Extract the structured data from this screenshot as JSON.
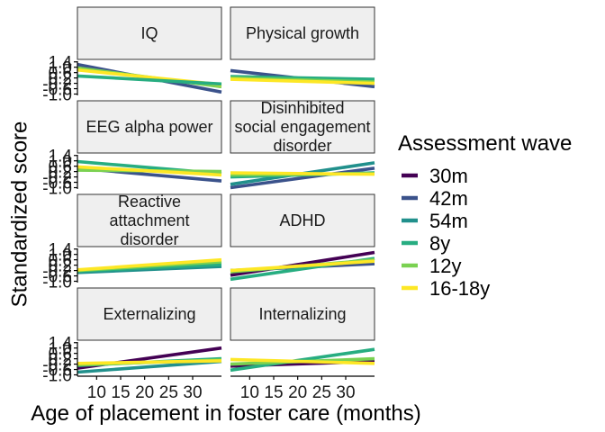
{
  "chart_data": {
    "type": "line",
    "xlabel": "Age of placement in foster care (months)",
    "ylabel": "Standardized score",
    "xlim": [
      6,
      36
    ],
    "ylim": [
      -1.1,
      1.45
    ],
    "x_ticks": [
      10,
      15,
      20,
      25,
      30
    ],
    "y_ticks": [
      -1.0,
      -0.6,
      -0.2,
      0.2,
      0.6,
      1.0,
      1.4
    ],
    "y_tick_labels": [
      "-1.0",
      "-0.6",
      "-0.2",
      "0.2",
      "0.6",
      "1.0",
      "1.4"
    ],
    "legend_title": "Assessment wave",
    "legend_position": "right",
    "series": [
      {
        "name": "30m",
        "color": "#440154"
      },
      {
        "name": "42m",
        "color": "#3b528b"
      },
      {
        "name": "54m",
        "color": "#21908c"
      },
      {
        "name": "8y",
        "color": "#27ad81"
      },
      {
        "name": "12y",
        "color": "#7ad151"
      },
      {
        "name": "16-18y",
        "color": "#fde725"
      }
    ],
    "panels": [
      {
        "title": "IQ",
        "lines": [
          {
            "series": "42m",
            "x": [
              6,
              36
            ],
            "y": [
              1.2,
              -0.85
            ]
          },
          {
            "series": "12y",
            "x": [
              6,
              36
            ],
            "y": [
              0.95,
              -0.45
            ]
          },
          {
            "series": "16-18y",
            "x": [
              6,
              36
            ],
            "y": [
              0.8,
              -0.3
            ]
          },
          {
            "series": "8y",
            "x": [
              6,
              36
            ],
            "y": [
              0.35,
              -0.25
            ]
          }
        ]
      },
      {
        "title": "Physical growth",
        "lines": [
          {
            "series": "42m",
            "x": [
              6,
              36
            ],
            "y": [
              0.75,
              -0.45
            ]
          },
          {
            "series": "8y",
            "x": [
              6,
              36
            ],
            "y": [
              0.3,
              0.1
            ]
          },
          {
            "series": "12y",
            "x": [
              6,
              36
            ],
            "y": [
              0.2,
              -0.1
            ]
          },
          {
            "series": "16-18y",
            "x": [
              6,
              36
            ],
            "y": [
              0.1,
              -0.2
            ]
          }
        ]
      },
      {
        "title": "EEG alpha power",
        "lines": [
          {
            "series": "42m",
            "x": [
              6,
              36
            ],
            "y": [
              0.45,
              -0.5
            ]
          },
          {
            "series": "8y",
            "x": [
              6,
              36
            ],
            "y": [
              0.95,
              0.05
            ]
          },
          {
            "series": "12y",
            "x": [
              6,
              36
            ],
            "y": [
              0.3,
              0.2
            ]
          },
          {
            "series": "16-18y",
            "x": [
              6,
              36
            ],
            "y": [
              0.55,
              -0.05
            ]
          }
        ]
      },
      {
        "title": "Disinhibited social engagement disorder",
        "lines": [
          {
            "series": "42m",
            "x": [
              6,
              36
            ],
            "y": [
              -1.0,
              0.45
            ]
          },
          {
            "series": "54m",
            "x": [
              6,
              36
            ],
            "y": [
              -0.75,
              0.85
            ]
          },
          {
            "series": "8y",
            "x": [
              6,
              36
            ],
            "y": [
              -0.2,
              0.1
            ]
          },
          {
            "series": "12y",
            "x": [
              6,
              36
            ],
            "y": [
              -0.05,
              0.05
            ]
          },
          {
            "series": "16-18y",
            "x": [
              6,
              36
            ],
            "y": [
              0.1,
              0.0
            ]
          }
        ]
      },
      {
        "title": "Reactive attachment disorder",
        "lines": [
          {
            "series": "54m",
            "x": [
              6,
              36
            ],
            "y": [
              -0.35,
              0.1
            ]
          },
          {
            "series": "8y",
            "x": [
              6,
              36
            ],
            "y": [
              -0.25,
              0.25
            ]
          },
          {
            "series": "12y",
            "x": [
              6,
              36
            ],
            "y": [
              -0.2,
              0.45
            ]
          },
          {
            "series": "16-18y",
            "x": [
              6,
              36
            ],
            "y": [
              -0.15,
              0.6
            ]
          }
        ]
      },
      {
        "title": "ADHD",
        "lines": [
          {
            "series": "30m",
            "x": [
              6,
              36
            ],
            "y": [
              -0.55,
              1.15
            ]
          },
          {
            "series": "42m",
            "x": [
              6,
              36
            ],
            "y": [
              -0.2,
              0.3
            ]
          },
          {
            "series": "8y",
            "x": [
              6,
              36
            ],
            "y": [
              -0.85,
              0.7
            ]
          },
          {
            "series": "12y",
            "x": [
              6,
              36
            ],
            "y": [
              -0.3,
              0.6
            ]
          },
          {
            "series": "16-18y",
            "x": [
              6,
              36
            ],
            "y": [
              -0.2,
              0.5
            ]
          }
        ]
      },
      {
        "title": "Externalizing",
        "lines": [
          {
            "series": "30m",
            "x": [
              6,
              36
            ],
            "y": [
              -0.5,
              1.0
            ]
          },
          {
            "series": "54m",
            "x": [
              6,
              36
            ],
            "y": [
              -0.8,
              0.0
            ]
          },
          {
            "series": "8y",
            "x": [
              6,
              36
            ],
            "y": [
              -0.3,
              0.2
            ]
          },
          {
            "series": "12y",
            "x": [
              6,
              36
            ],
            "y": [
              -0.25,
              0.1
            ]
          },
          {
            "series": "16-18y",
            "x": [
              6,
              36
            ],
            "y": [
              -0.15,
              0.05
            ]
          }
        ]
      },
      {
        "title": "Internalizing",
        "lines": [
          {
            "series": "30m",
            "x": [
              6,
              36
            ],
            "y": [
              -0.35,
              0.0
            ]
          },
          {
            "series": "8y",
            "x": [
              6,
              36
            ],
            "y": [
              -0.65,
              0.9
            ]
          },
          {
            "series": "12y",
            "x": [
              6,
              36
            ],
            "y": [
              -0.2,
              0.2
            ]
          },
          {
            "series": "16-18y",
            "x": [
              6,
              36
            ],
            "y": [
              0.15,
              -0.15
            ]
          }
        ]
      }
    ]
  }
}
